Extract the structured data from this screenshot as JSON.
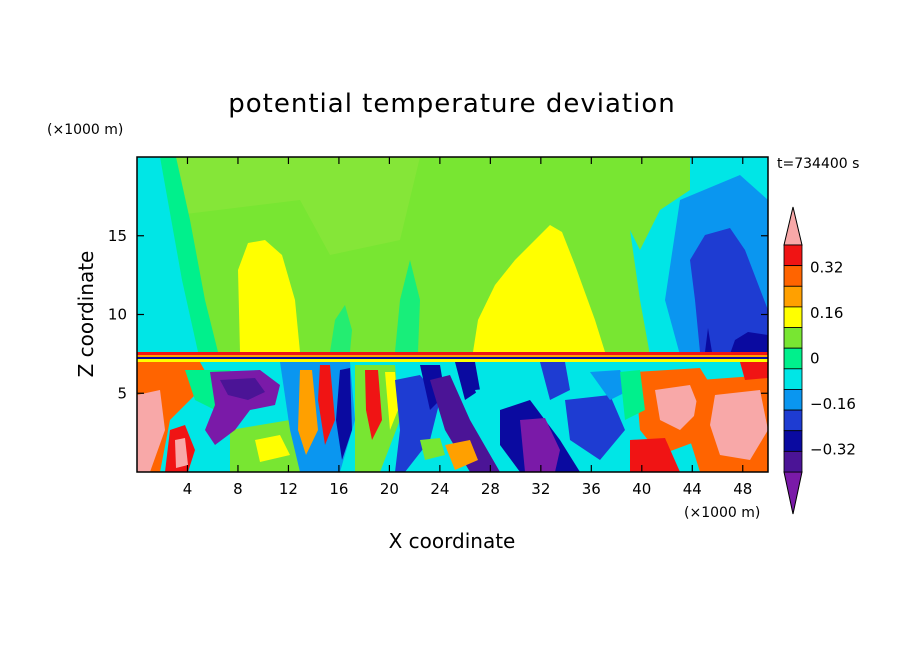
{
  "chart_data": {
    "type": "heatmap",
    "title": "potential temperature deviation",
    "xlabel": "X coordinate",
    "ylabel": "Z coordinate",
    "x_unit": "(×1000 m)",
    "y_unit": "(×1000 m)",
    "time_label": "t=734400 s",
    "xlim": [
      0,
      50
    ],
    "ylim": [
      0,
      20
    ],
    "x_ticks": [
      4,
      8,
      12,
      16,
      20,
      24,
      28,
      32,
      36,
      40,
      44,
      48
    ],
    "y_ticks": [
      5,
      10,
      15
    ],
    "colorbar": {
      "levels": [
        -0.4,
        -0.32,
        -0.24,
        -0.16,
        -0.08,
        0,
        0.08,
        0.16,
        0.24,
        0.32,
        0.4
      ],
      "labeled_levels": [
        0.32,
        0.16,
        0,
        -0.16,
        -0.32
      ],
      "labels": [
        "0.32",
        "0.16",
        "0",
        "−0.16",
        "−0.32"
      ],
      "colors": [
        "#7a1aa8",
        "#4b1496",
        "#0a0aa0",
        "#1e3cd2",
        "#0a96f0",
        "#00e6e6",
        "#00f08c",
        "#78e632",
        "#ffff00",
        "#ffa000",
        "#ff6400",
        "#f01414",
        "#f8a8a8"
      ],
      "extend": "both"
    },
    "upper_layer_features": [
      {
        "region": "yellow positive plume",
        "x": [
          7,
          13
        ],
        "z": [
          7.6,
          15.6
        ],
        "value": 0.16
      },
      {
        "region": "yellow positive plume",
        "x": [
          26,
          37
        ],
        "z": [
          7.6,
          15.8
        ],
        "value": 0.16
      },
      {
        "region": "negative core",
        "x": [
          42,
          50
        ],
        "z": [
          7.6,
          15.5
        ],
        "value": -0.24
      }
    ],
    "boundary_layer_top_z": 7.4
  }
}
